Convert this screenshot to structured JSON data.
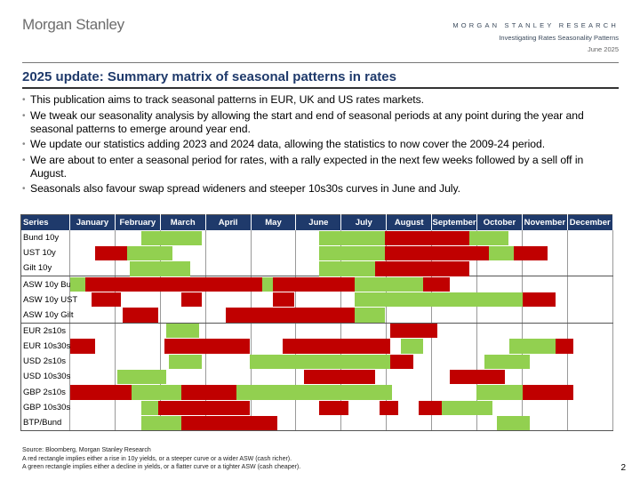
{
  "header": {
    "brand": "Morgan Stanley",
    "research_label": "MORGAN STANLEY RESEARCH",
    "report_title": "Investigating Rates Seasonality Patterns",
    "date": "June 2025"
  },
  "title": "2025 update: Summary matrix of seasonal patterns in rates",
  "bullets": [
    "This publication aims to track seasonal patterns in EUR, UK and US rates markets.",
    "We tweak our seasonality analysis by allowing the start and end of seasonal periods at any point during the year and seasonal patterns to emerge around year end.",
    "We update our statistics adding 2023 and 2024 data, allowing the statistics to now cover the 2009-24 period.",
    "We are about to enter a seasonal period for rates, with a rally expected in the next few weeks followed by a sell off in August.",
    "Seasonals also favour swap spread wideners and steeper 10s30s curves in June and July."
  ],
  "matrix": {
    "series_header": "Series",
    "months": [
      "January",
      "February",
      "March",
      "April",
      "May",
      "June",
      "July",
      "August",
      "September",
      "October",
      "November",
      "December"
    ],
    "colors": {
      "red": "#c00000",
      "green": "#92d050"
    },
    "groups_end_after": [
      2,
      5,
      12
    ],
    "rows": [
      {
        "label": "Bund 10y",
        "segments": [
          {
            "color": "green",
            "start": 1.57,
            "end": 2.91
          },
          {
            "color": "green",
            "start": 5.51,
            "end": 6.95
          },
          {
            "color": "red",
            "start": 6.95,
            "end": 8.82
          },
          {
            "color": "green",
            "start": 8.82,
            "end": 9.68
          }
        ]
      },
      {
        "label": "UST 10y",
        "segments": [
          {
            "color": "red",
            "start": 0.55,
            "end": 1.25
          },
          {
            "color": "green",
            "start": 1.25,
            "end": 2.25
          },
          {
            "color": "green",
            "start": 5.51,
            "end": 6.95
          },
          {
            "color": "red",
            "start": 6.95,
            "end": 9.26
          },
          {
            "color": "green",
            "start": 9.26,
            "end": 9.8
          },
          {
            "color": "red",
            "start": 9.8,
            "end": 10.56
          }
        ]
      },
      {
        "label": "Gilt 10y",
        "segments": [
          {
            "color": "green",
            "start": 1.31,
            "end": 2.65
          },
          {
            "color": "green",
            "start": 5.51,
            "end": 6.74
          },
          {
            "color": "red",
            "start": 6.74,
            "end": 8.82
          }
        ]
      },
      {
        "label": "ASW 10y Bund",
        "segments": [
          {
            "color": "green",
            "start": 0.0,
            "end": 0.34
          },
          {
            "color": "red",
            "start": 0.34,
            "end": 4.24
          },
          {
            "color": "green",
            "start": 4.24,
            "end": 4.48
          },
          {
            "color": "red",
            "start": 4.48,
            "end": 6.29
          },
          {
            "color": "green",
            "start": 6.29,
            "end": 7.79
          },
          {
            "color": "red",
            "start": 7.79,
            "end": 8.39
          }
        ]
      },
      {
        "label": "ASW 10y UST",
        "segments": [
          {
            "color": "red",
            "start": 0.48,
            "end": 1.12
          },
          {
            "color": "red",
            "start": 2.46,
            "end": 2.91
          },
          {
            "color": "red",
            "start": 4.48,
            "end": 4.95
          },
          {
            "color": "green",
            "start": 6.29,
            "end": 10.0
          },
          {
            "color": "red",
            "start": 10.0,
            "end": 10.73
          }
        ]
      },
      {
        "label": "ASW 10y Gilt",
        "segments": [
          {
            "color": "red",
            "start": 1.16,
            "end": 1.94
          },
          {
            "color": "red",
            "start": 3.44,
            "end": 6.29
          },
          {
            "color": "green",
            "start": 6.29,
            "end": 6.95
          }
        ]
      },
      {
        "label": "EUR 2s10s",
        "segments": [
          {
            "color": "green",
            "start": 2.12,
            "end": 2.85
          },
          {
            "color": "red",
            "start": 7.07,
            "end": 8.12
          }
        ]
      },
      {
        "label": "EUR 10s30s",
        "segments": [
          {
            "color": "red",
            "start": 0.0,
            "end": 0.55
          },
          {
            "color": "red",
            "start": 2.08,
            "end": 3.96
          },
          {
            "color": "red",
            "start": 4.69,
            "end": 7.07
          },
          {
            "color": "green",
            "start": 7.3,
            "end": 7.79
          },
          {
            "color": "green",
            "start": 9.7,
            "end": 10.72
          },
          {
            "color": "red",
            "start": 10.72,
            "end": 11.12
          }
        ]
      },
      {
        "label": "USD 2s10s",
        "segments": [
          {
            "color": "green",
            "start": 2.19,
            "end": 2.91
          },
          {
            "color": "green",
            "start": 3.96,
            "end": 7.07
          },
          {
            "color": "red",
            "start": 7.07,
            "end": 7.58
          },
          {
            "color": "green",
            "start": 9.16,
            "end": 10.15
          }
        ]
      },
      {
        "label": "USD 10s30s",
        "segments": [
          {
            "color": "green",
            "start": 1.05,
            "end": 2.12
          },
          {
            "color": "red",
            "start": 5.16,
            "end": 6.74
          },
          {
            "color": "red",
            "start": 8.39,
            "end": 9.6
          }
        ]
      },
      {
        "label": "GBP 2s10s",
        "segments": [
          {
            "color": "red",
            "start": 0.0,
            "end": 1.35
          },
          {
            "color": "green",
            "start": 1.35,
            "end": 2.46
          },
          {
            "color": "red",
            "start": 2.46,
            "end": 3.68
          },
          {
            "color": "green",
            "start": 3.68,
            "end": 7.12
          },
          {
            "color": "green",
            "start": 8.97,
            "end": 10.0
          },
          {
            "color": "red",
            "start": 10.0,
            "end": 11.12
          }
        ]
      },
      {
        "label": "GBP 10s30s",
        "segments": [
          {
            "color": "green",
            "start": 1.57,
            "end": 1.94
          },
          {
            "color": "red",
            "start": 1.94,
            "end": 3.96
          },
          {
            "color": "red",
            "start": 5.51,
            "end": 6.14
          },
          {
            "color": "red",
            "start": 6.83,
            "end": 7.25
          },
          {
            "color": "red",
            "start": 7.71,
            "end": 8.22
          },
          {
            "color": "green",
            "start": 8.22,
            "end": 9.34
          }
        ]
      },
      {
        "label": "BTP/Bund",
        "segments": [
          {
            "color": "green",
            "start": 1.57,
            "end": 2.46
          },
          {
            "color": "red",
            "start": 2.46,
            "end": 4.58
          },
          {
            "color": "green",
            "start": 9.44,
            "end": 10.15
          }
        ]
      }
    ]
  },
  "footnotes": {
    "source": "Source: Bloomberg, Morgan Stanley Research",
    "note_red": "A red rectangle implies either a rise in 10y yields, or a steeper curve or a wider ASW (cash richer).",
    "note_green": "A green rectangle implies either a decline in yields, or a flatter curve or a tighter ASW (cash cheaper)."
  },
  "page_number": "2"
}
